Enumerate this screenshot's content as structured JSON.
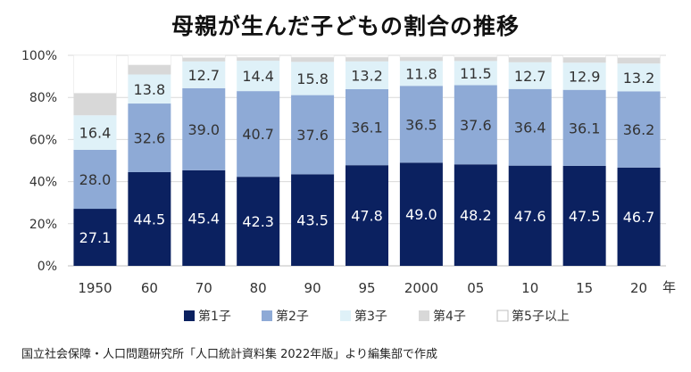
{
  "title": "母親が生んだ子どもの割合の推移",
  "source": "国立社会保障・人口問題研究所「人口統計資料集 2022年版」より編集部で作成",
  "colors": {
    "series": [
      "#0b2160",
      "#8eaad6",
      "#dff1f8",
      "#d8d8d8",
      "#ffffff"
    ],
    "grid": "#d9d9d9",
    "axis": "#bfbfbf",
    "legend_border": "#bfbfbf"
  },
  "chart_data": {
    "type": "bar",
    "stacked": true,
    "x_unit": "年",
    "categories": [
      "1950",
      "60",
      "70",
      "80",
      "90",
      "95",
      "2000",
      "05",
      "10",
      "15",
      "20"
    ],
    "series": [
      {
        "name": "第1子",
        "values": [
          27.1,
          44.5,
          45.4,
          42.3,
          43.5,
          47.8,
          49.0,
          48.2,
          47.6,
          47.5,
          46.7
        ],
        "labels": [
          "27.1",
          "44.5",
          "45.4",
          "42.3",
          "43.5",
          "47.8",
          "49.0",
          "48.2",
          "47.6",
          "47.5",
          "46.7"
        ]
      },
      {
        "name": "第2子",
        "values": [
          28.0,
          32.6,
          39.0,
          40.7,
          37.6,
          36.1,
          36.5,
          37.6,
          36.4,
          36.1,
          36.2
        ],
        "labels": [
          "28.0",
          "32.6",
          "39.0",
          "40.7",
          "37.6",
          "36.1",
          "36.5",
          "37.6",
          "36.4",
          "36.1",
          "36.2"
        ]
      },
      {
        "name": "第3子",
        "values": [
          16.4,
          13.8,
          12.7,
          14.4,
          15.8,
          13.2,
          11.8,
          11.5,
          12.7,
          12.9,
          13.2
        ],
        "labels": [
          "16.4",
          "13.8",
          "12.7",
          "14.4",
          "15.8",
          "13.2",
          "11.8",
          "11.5",
          "12.7",
          "12.9",
          "13.2"
        ]
      },
      {
        "name": "第4子",
        "values": [
          10.5,
          4.5,
          1.8,
          1.6,
          2.2,
          2.0,
          1.9,
          1.9,
          2.3,
          2.5,
          2.8
        ]
      },
      {
        "name": "第5子以上",
        "values": [
          18.0,
          4.6,
          1.1,
          1.0,
          0.9,
          0.9,
          0.8,
          0.8,
          1.0,
          1.0,
          1.1
        ]
      }
    ],
    "ylim": [
      0,
      100
    ],
    "yticks": [
      "0%",
      "20%",
      "40%",
      "60%",
      "80%",
      "100%"
    ],
    "grid": true,
    "legend_position": "bottom"
  }
}
